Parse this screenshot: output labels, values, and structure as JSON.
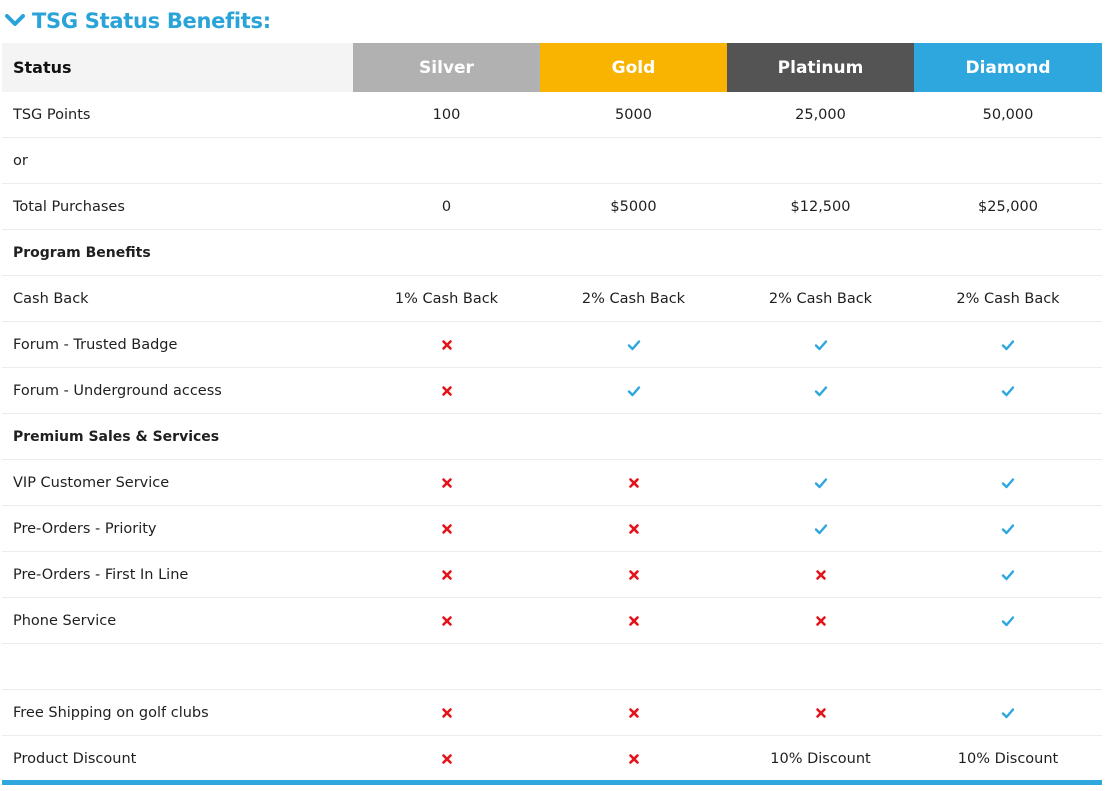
{
  "section": {
    "title": "TSG Status Benefits:",
    "icon": "chevron-down-icon",
    "accent": "#2aa3d9"
  },
  "table": {
    "header": {
      "status_label": "Status",
      "tiers": [
        {
          "label": "Silver",
          "color": "#b1b1b1"
        },
        {
          "label": "Gold",
          "color": "#f8b400"
        },
        {
          "label": "Platinum",
          "color": "#545454"
        },
        {
          "label": "Diamond",
          "color": "#2ea7df"
        }
      ]
    },
    "rows": [
      {
        "label": "TSG Points",
        "type": "text",
        "values": [
          "100",
          "5000",
          "25,000",
          "50,000"
        ]
      },
      {
        "label": "or",
        "type": "text",
        "values": [
          "",
          "",
          "",
          ""
        ]
      },
      {
        "label": "Total Purchases",
        "type": "text",
        "values": [
          "0",
          "$5000",
          "$12,500",
          "$25,000"
        ]
      },
      {
        "label": "Program Benefits",
        "type": "heading",
        "values": [
          "",
          "",
          "",
          ""
        ]
      },
      {
        "label": "Cash Back",
        "type": "text",
        "values": [
          "1% Cash Back",
          "2% Cash Back",
          "2% Cash Back",
          "2% Cash Back"
        ]
      },
      {
        "label": "Forum - Trusted Badge",
        "type": "mark",
        "values": [
          "cross",
          "check",
          "check",
          "check"
        ]
      },
      {
        "label": "Forum - Underground access",
        "type": "mark",
        "values": [
          "cross",
          "check",
          "check",
          "check"
        ]
      },
      {
        "label": "Premium Sales & Services",
        "type": "heading",
        "values": [
          "",
          "",
          "",
          ""
        ]
      },
      {
        "label": "VIP Customer Service",
        "type": "mark",
        "values": [
          "cross",
          "cross",
          "check",
          "check"
        ]
      },
      {
        "label": "Pre-Orders - Priority",
        "type": "mark",
        "values": [
          "cross",
          "cross",
          "check",
          "check"
        ]
      },
      {
        "label": "Pre-Orders - First In Line",
        "type": "mark",
        "values": [
          "cross",
          "cross",
          "cross",
          "check"
        ]
      },
      {
        "label": "Phone Service",
        "type": "mark",
        "values": [
          "cross",
          "cross",
          "cross",
          "check"
        ]
      },
      {
        "label": "",
        "type": "text",
        "values": [
          "",
          "",
          "",
          ""
        ]
      },
      {
        "label": "Free Shipping on golf clubs",
        "type": "mark",
        "values": [
          "cross",
          "cross",
          "cross",
          "check"
        ]
      },
      {
        "label": "Product Discount",
        "type": "mixed",
        "values": [
          "cross",
          "cross",
          "10% Discount",
          "10% Discount"
        ]
      }
    ],
    "icons": {
      "check": "check-icon",
      "cross": "cross-icon"
    },
    "colors": {
      "check": "#2ea7df",
      "cross": "#e3141b",
      "bottom_bar": "#2ea7df"
    }
  }
}
